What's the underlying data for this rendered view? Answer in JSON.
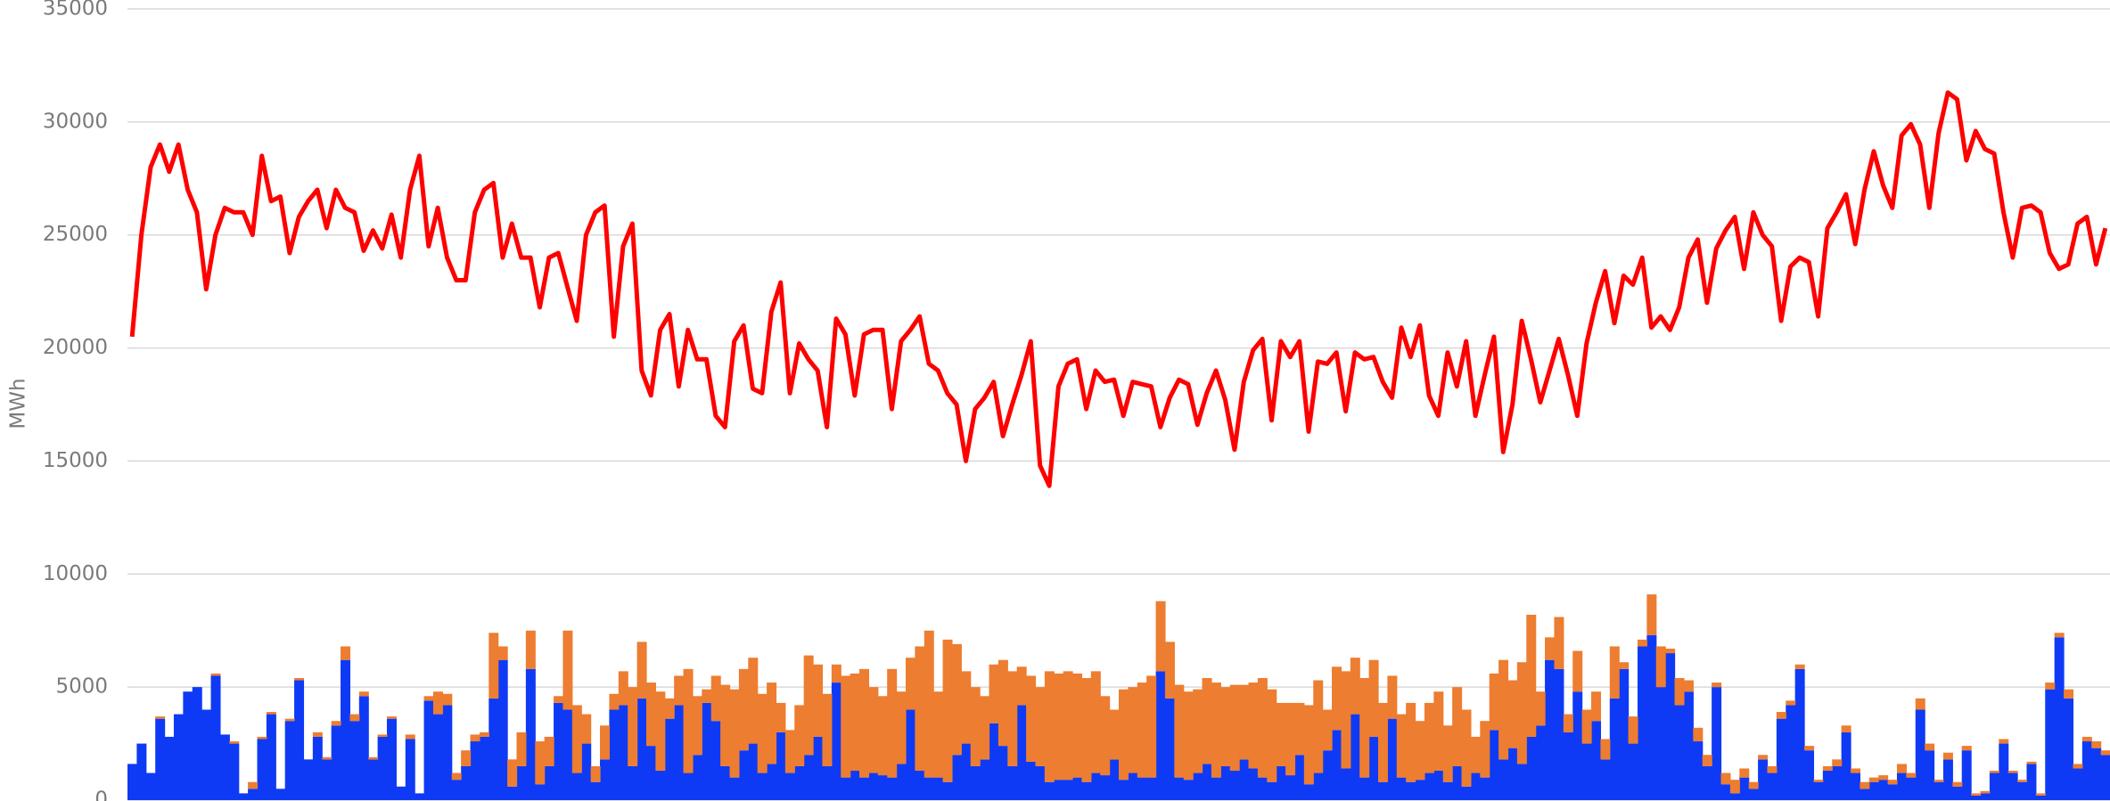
{
  "chart_data": {
    "type": "combo",
    "y_label": "MWh",
    "ylim": [
      0,
      35000
    ],
    "yticks": [
      0,
      5000,
      10000,
      15000,
      20000,
      25000,
      30000,
      35000
    ],
    "grid": true,
    "series": [
      {
        "type": "bar",
        "stack": "a",
        "color": "#0f3af5",
        "values": [
          1600,
          2500,
          1200,
          3600,
          2800,
          3800,
          4800,
          5000,
          4000,
          5500,
          2900,
          2500,
          300,
          500,
          2700,
          3800,
          500,
          3500,
          5300,
          1800,
          2800,
          1800,
          3300,
          6200,
          3500,
          4600,
          1800,
          2800,
          3600,
          600,
          2700,
          300,
          4400,
          3800,
          4200,
          900,
          1500,
          2600,
          2800,
          4500,
          6200,
          600,
          1500,
          5800,
          700,
          1500,
          4300,
          4000,
          1200,
          2500,
          800,
          1800,
          4000,
          4200,
          1500,
          4500,
          2400,
          1300,
          3600,
          4200,
          1200,
          2000,
          4300,
          3500,
          1500,
          1000,
          2200,
          2500,
          1200,
          1600,
          3000,
          1200,
          1500,
          2000,
          2800,
          1500,
          5200,
          1000,
          1300,
          1000,
          1200,
          1100,
          1000,
          1600,
          4000,
          1300,
          1000,
          1000,
          800,
          2000,
          2500,
          1500,
          1800,
          3400,
          2400,
          1500,
          4200,
          1700,
          1500,
          800,
          900,
          900,
          1000,
          800,
          1200,
          1100,
          1800,
          900,
          1200,
          1000,
          1000,
          5700,
          4500,
          1000,
          900,
          1200,
          1600,
          1000,
          1500,
          1300,
          1800,
          1400,
          1000,
          800,
          1500,
          1100,
          2000,
          700,
          1200,
          2200,
          3100,
          1400,
          3800,
          1000,
          2800,
          800,
          3600,
          1000,
          800,
          900,
          1200,
          1300,
          800,
          1500,
          600,
          1200,
          1000,
          3100,
          1800,
          2300,
          1600,
          2800,
          3300,
          6200,
          5800,
          3000,
          4800,
          2500,
          3500,
          1800,
          4500,
          5800,
          2500,
          6800,
          7300,
          5000,
          6500,
          4200,
          4800,
          2600,
          1500,
          5000,
          700,
          300,
          1000,
          500,
          1800,
          1200,
          3600,
          4200,
          5800,
          2200,
          800,
          1300,
          1500,
          3000,
          1200,
          500,
          800,
          900,
          700,
          1200,
          1000,
          4000,
          2200,
          800,
          1800,
          600,
          2200,
          200,
          300,
          1200,
          2500,
          1200,
          800,
          1600,
          200,
          4900,
          7200,
          4500,
          1400,
          2600,
          2300,
          2000
        ]
      },
      {
        "type": "bar",
        "stack": "a",
        "color": "#ed7d31",
        "values": [
          0,
          0,
          0,
          100,
          0,
          0,
          0,
          0,
          0,
          100,
          0,
          100,
          0,
          300,
          100,
          100,
          0,
          100,
          100,
          0,
          200,
          100,
          200,
          600,
          300,
          200,
          100,
          100,
          100,
          0,
          200,
          0,
          200,
          1000,
          500,
          300,
          700,
          300,
          200,
          2900,
          600,
          1200,
          1500,
          1700,
          1900,
          1300,
          300,
          3500,
          3000,
          1300,
          700,
          1500,
          700,
          1500,
          3500,
          2500,
          2800,
          3500,
          900,
          1300,
          4600,
          2600,
          600,
          2000,
          3600,
          3900,
          3600,
          3800,
          3500,
          3600,
          1300,
          1900,
          2700,
          4400,
          3200,
          3200,
          800,
          4500,
          4300,
          4800,
          3800,
          3500,
          4800,
          3200,
          2300,
          5500,
          6500,
          3800,
          6300,
          4900,
          3200,
          3500,
          2800,
          2600,
          3800,
          4200,
          1700,
          3800,
          3500,
          4900,
          4700,
          4800,
          4600,
          4600,
          4500,
          3500,
          2200,
          4000,
          3800,
          4200,
          4500,
          3100,
          2500,
          4100,
          3900,
          3700,
          3800,
          4200,
          3500,
          3800,
          3300,
          3800,
          4400,
          4100,
          2800,
          3200,
          2300,
          3500,
          4100,
          1800,
          2800,
          4300,
          2500,
          4400,
          3400,
          3500,
          1900,
          2800,
          3500,
          2600,
          3100,
          3500,
          2500,
          3500,
          3400,
          1600,
          2500,
          2500,
          4400,
          3000,
          4500,
          5400,
          1500,
          1000,
          2300,
          800,
          1800,
          1500,
          1300,
          900,
          2300,
          300,
          1200,
          300,
          1800,
          1800,
          200,
          1200,
          500,
          600,
          500,
          200,
          500,
          600,
          400,
          300,
          200,
          300,
          300,
          200,
          200,
          200,
          100,
          200,
          300,
          300,
          200,
          300,
          200,
          200,
          200,
          400,
          200,
          500,
          300,
          100,
          300,
          200,
          200,
          100,
          100,
          100,
          200,
          100,
          100,
          100,
          100,
          300,
          200,
          400,
          200,
          200,
          300,
          200
        ]
      },
      {
        "type": "line",
        "color": "#ff0000",
        "values": [
          20500,
          25000,
          28000,
          29000,
          27800,
          29000,
          27000,
          26000,
          22600,
          25000,
          26200,
          26000,
          26000,
          25000,
          28500,
          26500,
          26700,
          24200,
          25800,
          26500,
          27000,
          25300,
          27000,
          26200,
          26000,
          24300,
          25200,
          24400,
          25900,
          24000,
          27000,
          28500,
          24500,
          26200,
          24000,
          23000,
          23000,
          26000,
          27000,
          27300,
          24000,
          25500,
          24000,
          24000,
          21800,
          24000,
          24200,
          22700,
          21200,
          25000,
          26000,
          26300,
          20500,
          24500,
          25500,
          19000,
          17900,
          20800,
          21500,
          18300,
          20800,
          19500,
          19500,
          17000,
          16500,
          20300,
          21000,
          18200,
          18000,
          21600,
          22900,
          18000,
          20200,
          19500,
          19000,
          16500,
          21300,
          20600,
          17900,
          20600,
          20800,
          20800,
          17300,
          20300,
          20800,
          21400,
          19300,
          19000,
          18000,
          17500,
          15000,
          17300,
          17800,
          18500,
          16100,
          17500,
          18800,
          20300,
          14800,
          13900,
          18300,
          19300,
          19500,
          17300,
          19000,
          18500,
          18600,
          17000,
          18500,
          18400,
          18300,
          16500,
          17800,
          18600,
          18400,
          16600,
          18000,
          19000,
          17700,
          15500,
          18500,
          19900,
          20400,
          16800,
          20300,
          19600,
          20300,
          16300,
          19400,
          19300,
          19800,
          17200,
          19800,
          19500,
          19600,
          18500,
          17800,
          20900,
          19600,
          21000,
          17900,
          17000,
          19800,
          18300,
          20300,
          17000,
          18800,
          20500,
          15400,
          17500,
          21200,
          19500,
          17600,
          19000,
          20400,
          18800,
          17000,
          20200,
          22000,
          23400,
          21100,
          23200,
          22800,
          24000,
          20900,
          21400,
          20800,
          21800,
          24000,
          24800,
          22000,
          24400,
          25200,
          25800,
          23500,
          26000,
          25000,
          24500,
          21200,
          23600,
          24000,
          23800,
          21400,
          25300,
          26000,
          26800,
          24600,
          27000,
          28700,
          27200,
          26200,
          29400,
          29900,
          29000,
          26200,
          29500,
          31300,
          31000,
          28300,
          29600,
          28800,
          28600,
          26000,
          24000,
          26200,
          26300,
          26000,
          24200,
          23500,
          23700,
          25500,
          25800,
          23700,
          25300
        ]
      }
    ]
  }
}
